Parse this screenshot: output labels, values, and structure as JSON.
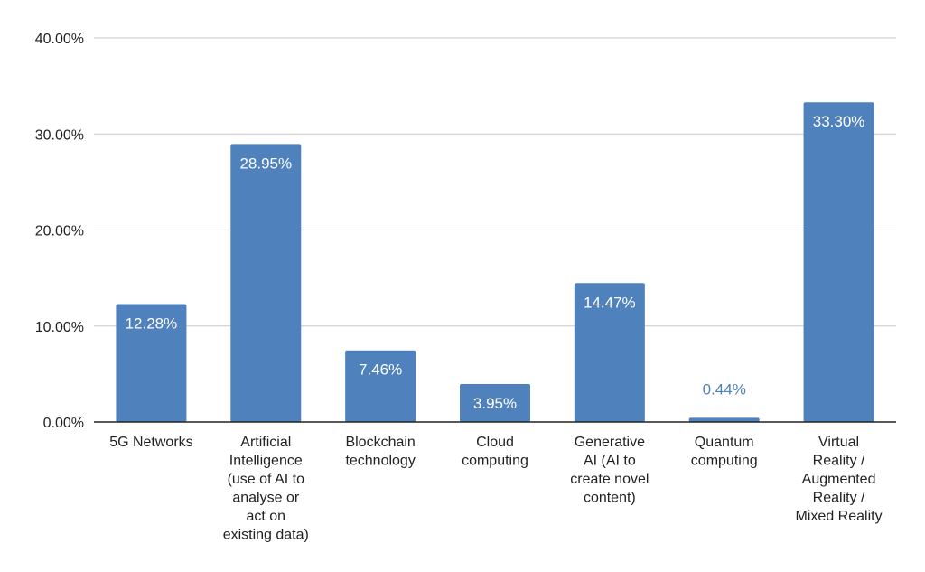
{
  "chart_data": {
    "type": "bar",
    "categories": [
      [
        "5G Networks"
      ],
      [
        "Artificial",
        "Intelligence",
        "(use of AI to",
        "analyse or",
        "act on",
        "existing data)"
      ],
      [
        "Blockchain",
        "technology"
      ],
      [
        "Cloud",
        "computing"
      ],
      [
        "Generative",
        "AI (AI to",
        "create novel",
        "content)"
      ],
      [
        "Quantum",
        "computing"
      ],
      [
        "Virtual",
        "Reality /",
        "Augmented",
        "Reality /",
        "Mixed Reality"
      ]
    ],
    "values": [
      12.28,
      28.95,
      7.46,
      3.95,
      14.47,
      0.44,
      33.3
    ],
    "data_labels": [
      "12.28%",
      "28.95%",
      "7.46%",
      "3.95%",
      "14.47%",
      "0.44%",
      "33.30%"
    ],
    "ylim": [
      0,
      40
    ],
    "yticks": [
      0,
      10,
      20,
      30,
      40
    ],
    "ytick_labels": [
      "0.00%",
      "10.00%",
      "20.00%",
      "30.00%",
      "40.00%"
    ],
    "grid": true,
    "colors": {
      "bar": "#4f81bd",
      "label_inside": "#ffffff",
      "label_outside": "#4f81bd"
    }
  }
}
